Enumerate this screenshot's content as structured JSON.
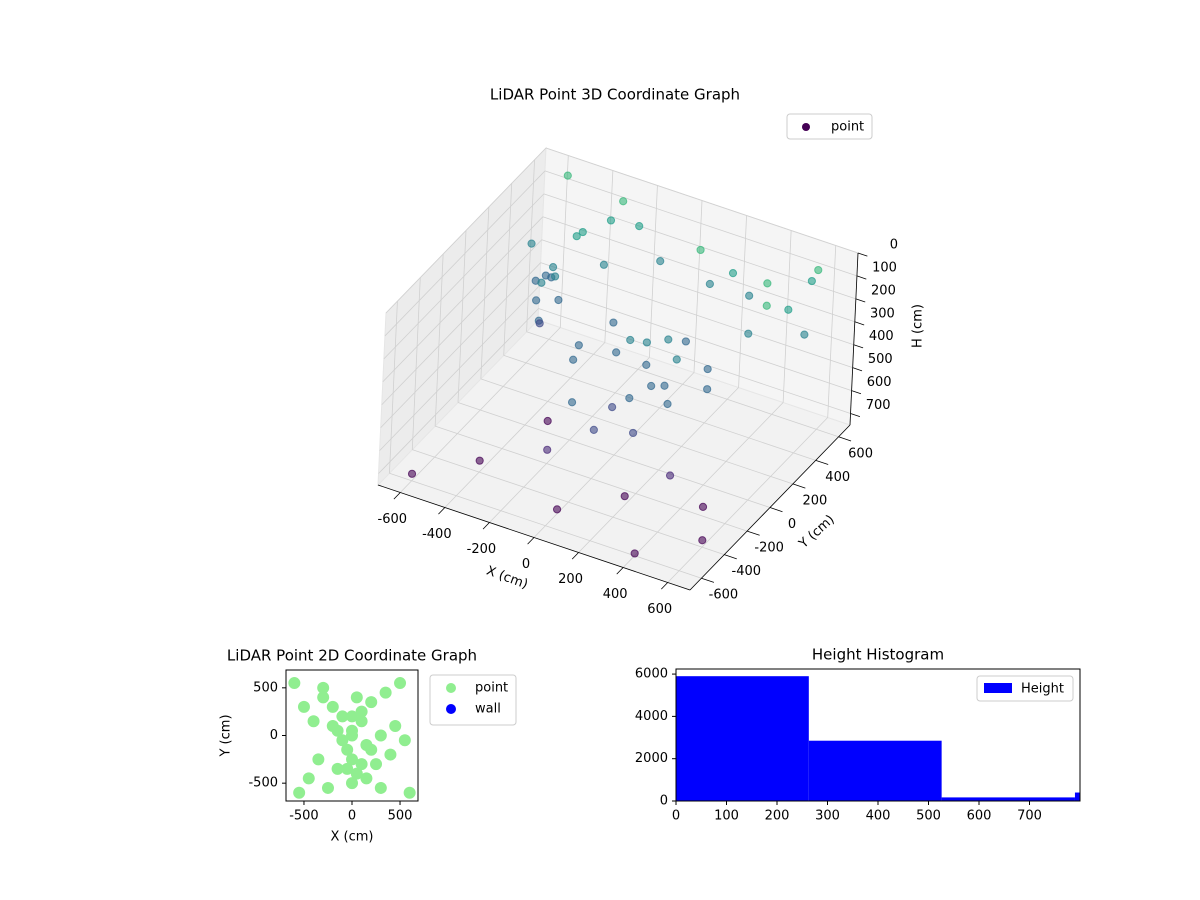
{
  "chart_data": [
    {
      "type": "scatter3d",
      "title": "LiDAR Point 3D Coordinate Graph",
      "xlabel": "X (cm)",
      "ylabel": "Y (cm)",
      "zlabel": "H (cm)",
      "xlim": [
        -700,
        700
      ],
      "ylim": [
        -700,
        700
      ],
      "zlim": [
        750,
        0
      ],
      "xticks": [
        -600,
        -400,
        -200,
        0,
        200,
        400,
        600
      ],
      "yticks": [
        -600,
        -400,
        -200,
        0,
        200,
        400,
        600
      ],
      "zticks": [
        0,
        100,
        200,
        300,
        400,
        500,
        600,
        700
      ],
      "colormap": "viridis",
      "grid": true,
      "legend": "upper right",
      "series": [
        {
          "name": "point",
          "color": "#440154",
          "x": [
            -550,
            -520,
            -500,
            -480,
            -530,
            -460,
            -510,
            -490,
            -540,
            -470,
            0,
            50,
            100,
            150,
            200,
            -50,
            80,
            120,
            180,
            30,
            -200,
            -150,
            250,
            300,
            -100,
            200,
            350,
            -250,
            150,
            50,
            -550,
            -300,
            100,
            600,
            550,
            -200,
            -400,
            450,
            500,
            -350,
            -600,
            -400,
            -200,
            0,
            200,
            400,
            600,
            -300,
            300,
            500,
            -450,
            -300,
            -100,
            100,
            300,
            500,
            600,
            -600,
            400,
            200
          ],
          "y": [
            350,
            300,
            400,
            250,
            450,
            380,
            320,
            280,
            420,
            360,
            100,
            150,
            50,
            0,
            120,
            80,
            -50,
            200,
            60,
            -100,
            0,
            250,
            -50,
            200,
            -200,
            -250,
            100,
            150,
            300,
            -300,
            600,
            600,
            500,
            550,
            600,
            550,
            450,
            400,
            300,
            600,
            -600,
            -400,
            -200,
            -500,
            -300,
            -600,
            -400,
            0,
            -100,
            -200,
            500,
            450,
            550,
            600,
            550,
            500,
            450,
            400,
            350,
            600
          ],
          "z": [
            350,
            400,
            300,
            450,
            380,
            420,
            330,
            480,
            360,
            310,
            300,
            320,
            350,
            400,
            330,
            360,
            450,
            310,
            420,
            480,
            400,
            350,
            420,
            380,
            450,
            460,
            400,
            430,
            360,
            470,
            20,
            50,
            80,
            30,
            120,
            100,
            140,
            60,
            90,
            150,
            720,
            700,
            690,
            730,
            710,
            740,
            720,
            700,
            690,
            710,
            200,
            250,
            220,
            280,
            240,
            210,
            260,
            230,
            270,
            200
          ]
        }
      ]
    },
    {
      "type": "scatter",
      "title": "LiDAR Point 2D Coordinate Graph",
      "xlabel": "X (cm)",
      "ylabel": "Y (cm)",
      "xlim": [
        -687,
        687
      ],
      "ylim": [
        -687,
        687
      ],
      "xticks": [
        -500,
        0,
        500
      ],
      "yticks": [
        -500,
        0,
        500
      ],
      "legend": "outside right",
      "series": [
        {
          "name": "point",
          "color": "#90ee90",
          "x": [
            -600,
            -550,
            -500,
            -450,
            -400,
            -350,
            -300,
            -250,
            -200,
            -150,
            -100,
            -50,
            0,
            50,
            100,
            150,
            200,
            250,
            300,
            350,
            400,
            450,
            500,
            550,
            600,
            -100,
            0,
            100,
            200,
            -200,
            0,
            50,
            -50,
            150,
            -150,
            100,
            0,
            -300,
            300,
            0
          ],
          "y": [
            550,
            -600,
            300,
            -450,
            150,
            -250,
            400,
            -550,
            100,
            -350,
            200,
            -150,
            50,
            -400,
            250,
            -100,
            350,
            -300,
            0,
            450,
            -200,
            100,
            550,
            -50,
            -600,
            -50,
            -250,
            150,
            -150,
            300,
            -500,
            400,
            -350,
            -450,
            50,
            -300,
            200,
            500,
            -550,
            0
          ]
        },
        {
          "name": "wall",
          "color": "#0000ff",
          "x": [],
          "y": []
        }
      ]
    },
    {
      "type": "histogram",
      "title": "Height Histogram",
      "name": "Height",
      "color": "#0000ff",
      "bins": [
        0,
        263,
        526,
        790,
        800
      ],
      "counts": [
        5900,
        2850,
        170,
        400
      ],
      "xlim": [
        0,
        800
      ],
      "ylim": [
        0,
        6240
      ],
      "xticks": [
        0,
        100,
        200,
        300,
        400,
        500,
        600,
        700
      ],
      "yticks": [
        0,
        2000,
        4000,
        6000
      ],
      "legend": "upper right"
    }
  ]
}
